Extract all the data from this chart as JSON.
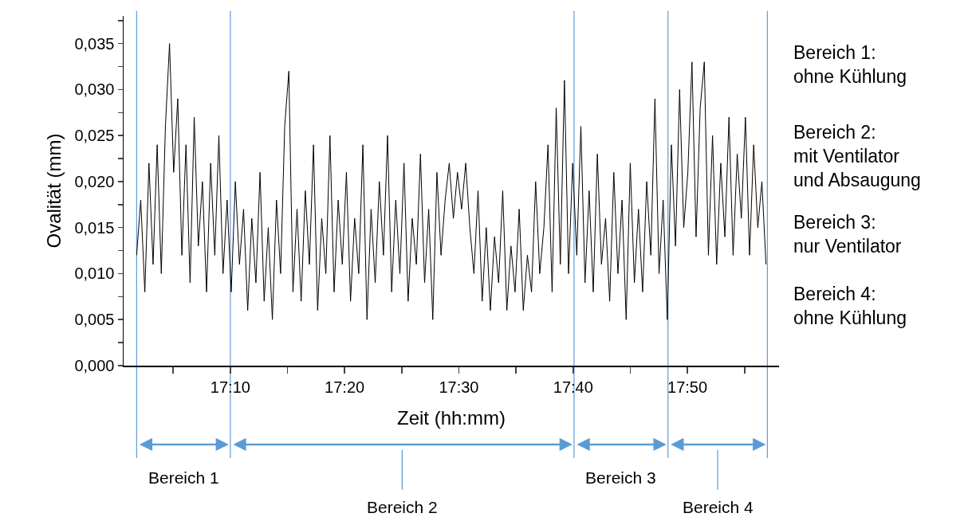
{
  "chart_data": {
    "type": "line",
    "xlabel": "Zeit (hh:mm)",
    "ylabel": "Ovalität (mm)",
    "xlim": [
      17.011,
      17.967
    ],
    "ylim": [
      0,
      0.038
    ],
    "xticks": [
      {
        "value": 17.0833,
        "label": null
      },
      {
        "value": 17.1667,
        "label": "17:10"
      },
      {
        "value": 17.25,
        "label": null
      },
      {
        "value": 17.3333,
        "label": "17:20"
      },
      {
        "value": 17.4167,
        "label": null
      },
      {
        "value": 17.5,
        "label": "17:30"
      },
      {
        "value": 17.5833,
        "label": null
      },
      {
        "value": 17.6667,
        "label": "17:40"
      },
      {
        "value": 17.75,
        "label": null
      },
      {
        "value": 17.8333,
        "label": "17:50"
      },
      {
        "value": 17.9167,
        "label": null
      }
    ],
    "yticks": [
      {
        "value": 0,
        "label": "0,000"
      },
      {
        "value": 0.0025,
        "label": null
      },
      {
        "value": 0.005,
        "label": "0,005"
      },
      {
        "value": 0.0075,
        "label": null
      },
      {
        "value": 0.01,
        "label": "0,010"
      },
      {
        "value": 0.0125,
        "label": null
      },
      {
        "value": 0.015,
        "label": "0,015"
      },
      {
        "value": 0.0175,
        "label": null
      },
      {
        "value": 0.02,
        "label": "0,020"
      },
      {
        "value": 0.0225,
        "label": null
      },
      {
        "value": 0.025,
        "label": "0,025"
      },
      {
        "value": 0.0275,
        "label": null
      },
      {
        "value": 0.03,
        "label": "0,030"
      },
      {
        "value": 0.0325,
        "label": null
      },
      {
        "value": 0.035,
        "label": "0,035"
      },
      {
        "value": 0.0375,
        "label": null
      }
    ],
    "grid": false,
    "marker": "none",
    "line_style": "solid",
    "series": [
      {
        "color": "#000000",
        "x": [
          17.03,
          17.036,
          17.042,
          17.048,
          17.054,
          17.06,
          17.066,
          17.072,
          17.078,
          17.084,
          17.09,
          17.096,
          17.102,
          17.108,
          17.114,
          17.12,
          17.126,
          17.132,
          17.138,
          17.144,
          17.15,
          17.156,
          17.162,
          17.168,
          17.174,
          17.18,
          17.186,
          17.192,
          17.198,
          17.204,
          17.21,
          17.216,
          17.222,
          17.228,
          17.234,
          17.24,
          17.246,
          17.252,
          17.258,
          17.264,
          17.27,
          17.276,
          17.282,
          17.288,
          17.294,
          17.3,
          17.306,
          17.312,
          17.318,
          17.324,
          17.33,
          17.336,
          17.342,
          17.348,
          17.354,
          17.36,
          17.366,
          17.372,
          17.378,
          17.384,
          17.39,
          17.396,
          17.402,
          17.408,
          17.414,
          17.42,
          17.426,
          17.432,
          17.438,
          17.444,
          17.45,
          17.456,
          17.462,
          17.468,
          17.474,
          17.48,
          17.486,
          17.492,
          17.498,
          17.504,
          17.51,
          17.516,
          17.522,
          17.528,
          17.534,
          17.54,
          17.546,
          17.552,
          17.558,
          17.564,
          17.57,
          17.576,
          17.582,
          17.588,
          17.594,
          17.6,
          17.606,
          17.612,
          17.618,
          17.624,
          17.63,
          17.636,
          17.642,
          17.648,
          17.654,
          17.66,
          17.666,
          17.672,
          17.678,
          17.684,
          17.69,
          17.696,
          17.702,
          17.708,
          17.714,
          17.72,
          17.726,
          17.732,
          17.738,
          17.744,
          17.75,
          17.756,
          17.762,
          17.768,
          17.774,
          17.78,
          17.786,
          17.792,
          17.798,
          17.804,
          17.81,
          17.816,
          17.822,
          17.828,
          17.834,
          17.84,
          17.846,
          17.852,
          17.858,
          17.864,
          17.87,
          17.876,
          17.882,
          17.888,
          17.894,
          17.9,
          17.906,
          17.912,
          17.918,
          17.924,
          17.93,
          17.936,
          17.942,
          17.948
        ],
        "values": [
          0.012,
          0.018,
          0.008,
          0.022,
          0.011,
          0.024,
          0.01,
          0.026,
          0.035,
          0.021,
          0.029,
          0.012,
          0.024,
          0.009,
          0.027,
          0.013,
          0.02,
          0.008,
          0.022,
          0.012,
          0.025,
          0.01,
          0.018,
          0.008,
          0.02,
          0.011,
          0.017,
          0.006,
          0.016,
          0.009,
          0.021,
          0.007,
          0.015,
          0.005,
          0.018,
          0.01,
          0.026,
          0.032,
          0.008,
          0.017,
          0.007,
          0.019,
          0.011,
          0.024,
          0.006,
          0.016,
          0.01,
          0.025,
          0.008,
          0.018,
          0.011,
          0.021,
          0.007,
          0.016,
          0.01,
          0.024,
          0.005,
          0.017,
          0.009,
          0.02,
          0.012,
          0.025,
          0.008,
          0.018,
          0.01,
          0.022,
          0.007,
          0.016,
          0.011,
          0.023,
          0.009,
          0.017,
          0.005,
          0.021,
          0.012,
          0.018,
          0.022,
          0.016,
          0.021,
          0.017,
          0.022,
          0.015,
          0.01,
          0.019,
          0.007,
          0.015,
          0.006,
          0.014,
          0.009,
          0.019,
          0.006,
          0.013,
          0.008,
          0.017,
          0.006,
          0.012,
          0.008,
          0.02,
          0.01,
          0.015,
          0.024,
          0.008,
          0.028,
          0.011,
          0.031,
          0.01,
          0.022,
          0.012,
          0.026,
          0.009,
          0.019,
          0.008,
          0.023,
          0.011,
          0.016,
          0.007,
          0.021,
          0.01,
          0.018,
          0.005,
          0.022,
          0.009,
          0.017,
          0.008,
          0.02,
          0.012,
          0.029,
          0.01,
          0.018,
          0.005,
          0.024,
          0.013,
          0.03,
          0.015,
          0.021,
          0.033,
          0.014,
          0.028,
          0.033,
          0.012,
          0.025,
          0.011,
          0.022,
          0.014,
          0.027,
          0.012,
          0.023,
          0.016,
          0.027,
          0.012,
          0.024,
          0.015,
          0.02,
          0.011
        ]
      }
    ],
    "ref_lines": [
      {
        "axis": "x",
        "value": 17.03,
        "color": "#5b9bd5"
      },
      {
        "axis": "x",
        "value": 17.1667,
        "color": "#5b9bd5"
      },
      {
        "axis": "x",
        "value": 17.668,
        "color": "#5b9bd5"
      },
      {
        "axis": "x",
        "value": 17.805,
        "color": "#5b9bd5"
      },
      {
        "axis": "x",
        "value": 17.95,
        "color": "#5b9bd5"
      }
    ],
    "annotations": [
      "Bereich 1:\nohne Kühlung",
      "Bereich 2:\nmit Ventilator\nund Absaugung",
      "Bereich 3:\nnur Ventilator",
      "Bereich 4:\nohne Kühlung",
      "Bereich 1",
      "Bereich 2",
      "Bereich 3",
      "Bereich 4"
    ]
  }
}
